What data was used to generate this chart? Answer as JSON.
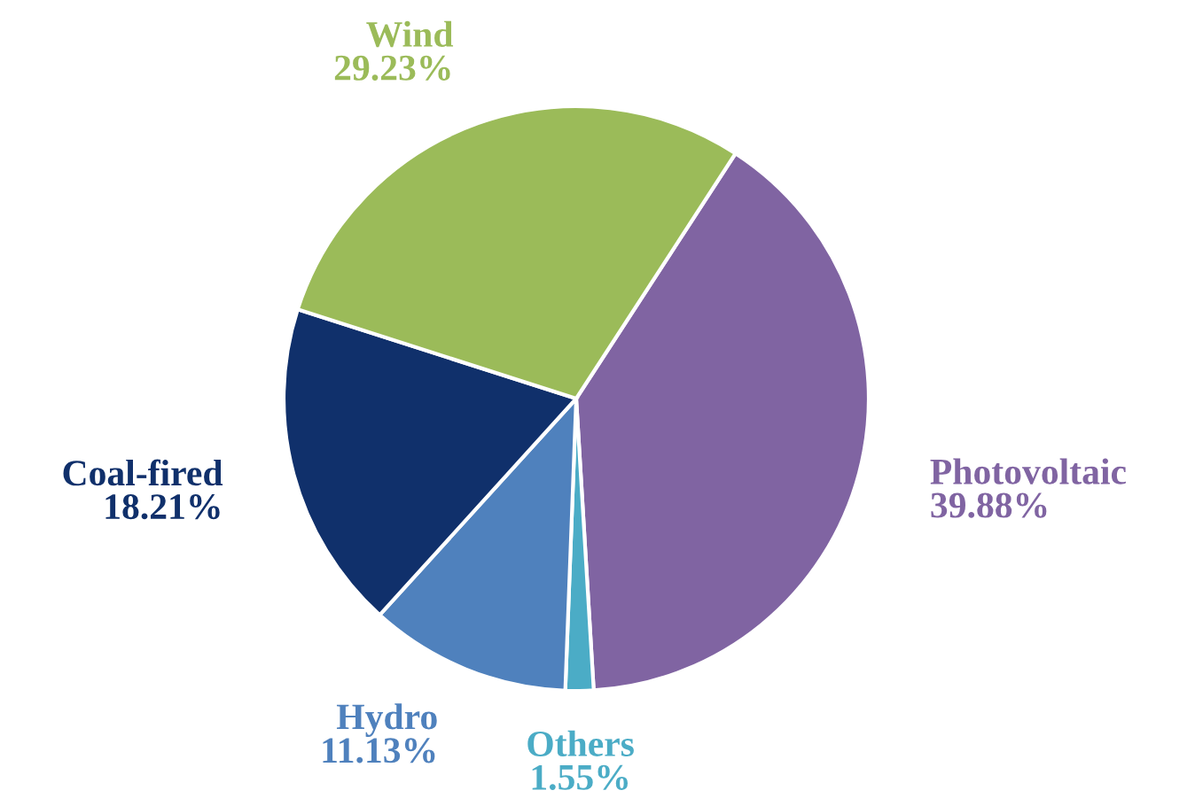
{
  "chart_data": {
    "type": "pie",
    "categories": [
      "Photovoltaic",
      "Others",
      "Hydro",
      "Coal-fired",
      "Wind"
    ],
    "values": [
      39.88,
      1.55,
      11.13,
      18.21,
      29.23
    ],
    "colors": [
      "#8064a2",
      "#4bacc6",
      "#4f81bd",
      "#10306b",
      "#9bbb59"
    ],
    "value_labels": [
      "39.88%",
      "1.55%",
      "11.13%",
      "18.21%",
      "29.23%"
    ],
    "legend": false
  }
}
